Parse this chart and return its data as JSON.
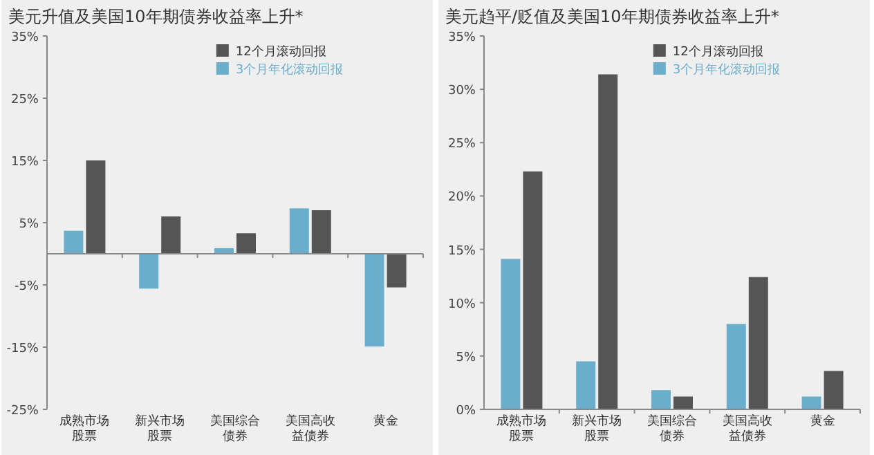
{
  "chart_data": [
    {
      "type": "bar",
      "title": "美元升值及美国10年期债券收益率上升*",
      "categories": [
        "成熟市场股票",
        "新兴市场股票",
        "美国综合债券",
        "美国高收益债券",
        "黄金"
      ],
      "series": [
        {
          "name": "3个月年化滚动回报",
          "color": "#6aaecb",
          "values": [
            3.7,
            -5.6,
            0.9,
            7.3,
            -14.9
          ]
        },
        {
          "name": "12个月滚动回报",
          "color": "#555555",
          "values": [
            15,
            6,
            3.3,
            7,
            -5.4
          ]
        }
      ],
      "ylim": [
        -25,
        35
      ],
      "yticks": [
        {
          "value": -25,
          "label": "-25%"
        },
        {
          "value": -15,
          "label": "-15%"
        },
        {
          "value": -5,
          "label": "-5%"
        },
        {
          "value": 5,
          "label": "5%"
        },
        {
          "value": 15,
          "label": "15%"
        },
        {
          "value": 25,
          "label": "25%"
        },
        {
          "value": 35,
          "label": "35%"
        }
      ],
      "grid": false,
      "legend": "top"
    },
    {
      "type": "bar",
      "title": "美元趋平/贬值及美国10年期债券收益率上升*",
      "categories": [
        "成熟市场股票",
        "新兴市场股票",
        "美国综合债券",
        "美国高收益债券",
        "黄金"
      ],
      "series": [
        {
          "name": "3个月年化滚动回报",
          "color": "#6aaecb",
          "values": [
            14.1,
            4.5,
            1.8,
            8.0,
            1.2
          ]
        },
        {
          "name": "12个月滚动回报",
          "color": "#555555",
          "values": [
            22.3,
            31.4,
            1.2,
            12.4,
            3.6
          ]
        }
      ],
      "ylim": [
        0,
        35
      ],
      "yticks": [
        {
          "value": 0,
          "label": "0%"
        },
        {
          "value": 5,
          "label": "5%"
        },
        {
          "value": 10,
          "label": "10%"
        },
        {
          "value": 15,
          "label": "15%"
        },
        {
          "value": 20,
          "label": "20%"
        },
        {
          "value": 25,
          "label": "25%"
        },
        {
          "value": 30,
          "label": "30%"
        },
        {
          "value": 35,
          "label": "35%"
        }
      ],
      "grid": false,
      "legend": "top"
    }
  ]
}
